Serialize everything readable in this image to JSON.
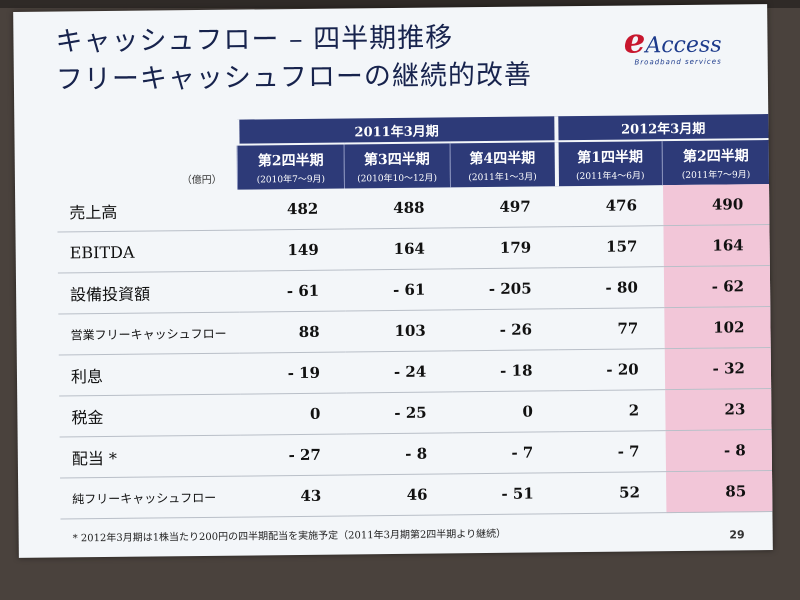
{
  "slide": {
    "title_line1": "キャッシュフロー – 四半期推移",
    "title_line2": "フリーキャッシュフローの継続的改善",
    "logo": {
      "e": "e",
      "name": "Access",
      "tagline": "Broadband services"
    },
    "unit": "（億円）",
    "groups": [
      "2011年3月期",
      "2012年3月期"
    ],
    "quarters": [
      {
        "name": "第2四半期",
        "period": "(2010年7～9月)"
      },
      {
        "name": "第3四半期",
        "period": "(2010年10～12月)"
      },
      {
        "name": "第4四半期",
        "period": "(2011年1～3月)"
      },
      {
        "name": "第1四半期",
        "period": "(2011年4～6月)"
      },
      {
        "name": "第2四半期",
        "period": "(2011年7～9月)"
      }
    ],
    "rows": [
      {
        "label": "売上高",
        "values": [
          "482",
          "488",
          "497",
          "476",
          "490"
        ]
      },
      {
        "label": "EBITDA",
        "values": [
          "149",
          "164",
          "179",
          "157",
          "164"
        ]
      },
      {
        "label": "設備投資額",
        "values": [
          "- 61",
          "- 61",
          "- 205",
          "- 80",
          "- 62"
        ]
      },
      {
        "label": "営業フリーキャッシュフロー",
        "values": [
          "88",
          "103",
          "- 26",
          "77",
          "102"
        ]
      },
      {
        "label": "利息",
        "values": [
          "- 19",
          "- 24",
          "- 18",
          "- 20",
          "- 32"
        ]
      },
      {
        "label": "税金",
        "values": [
          "0",
          "- 25",
          "0",
          "2",
          "23"
        ]
      },
      {
        "label": "配当 *",
        "values": [
          "- 27",
          "- 8",
          "- 7",
          "- 7",
          "- 8"
        ]
      },
      {
        "label": "純フリーキャッシュフロー",
        "values": [
          "43",
          "46",
          "- 51",
          "52",
          "85"
        ]
      }
    ],
    "footnote": "* 2012年3月期は1株当たり200円の四半期配当を実施予定（2011年3月期第2四半期より継続）",
    "page_number": "29",
    "highlight_color": "#f2c6d8",
    "header_color": "#2d3a78"
  }
}
